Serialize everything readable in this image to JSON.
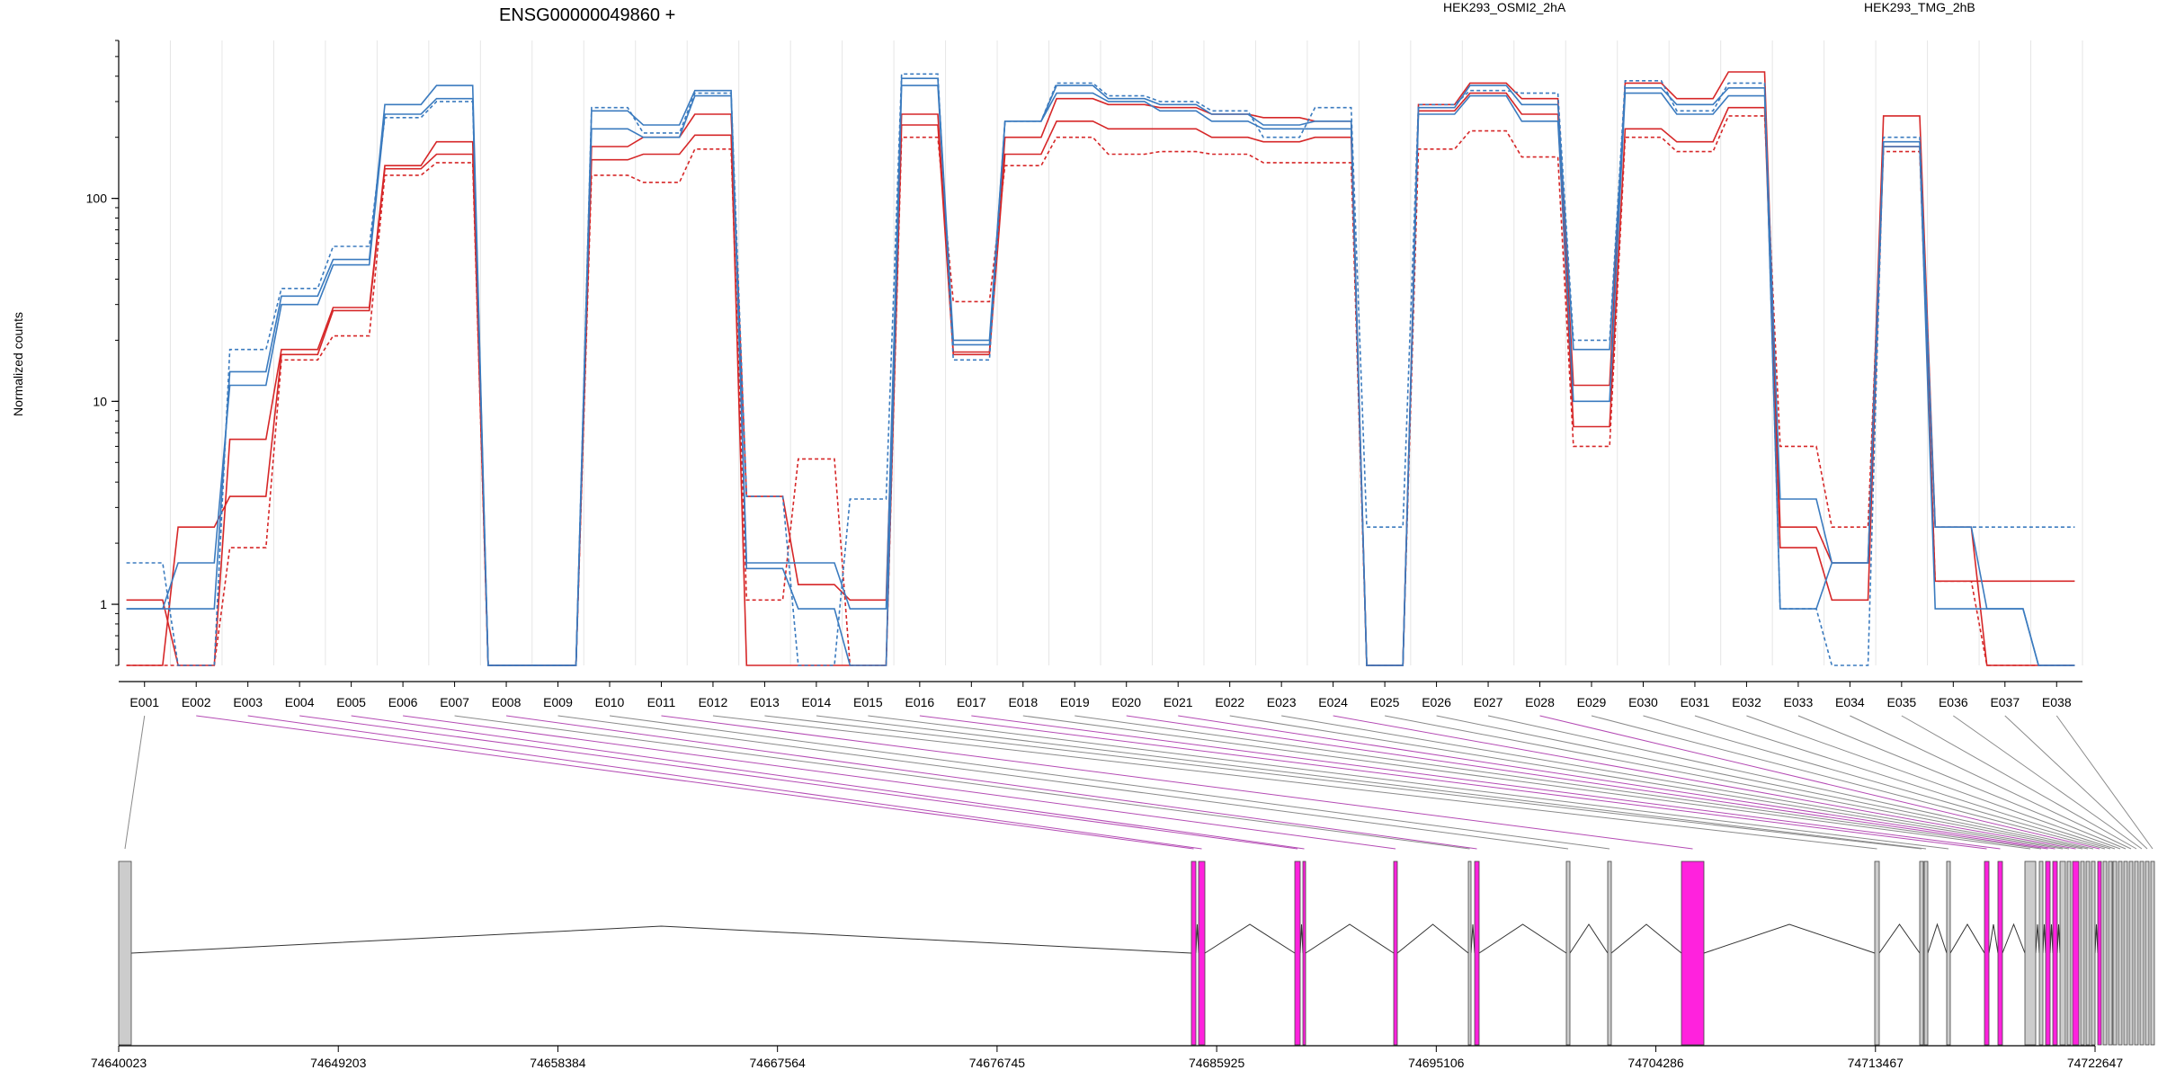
{
  "chart_data": {
    "type": "line",
    "title": "ENSG00000049860 +",
    "ylabel": "Normalized counts",
    "yscale": "log",
    "ylim": [
      0.5,
      600
    ],
    "yticks": [
      1,
      10,
      100
    ],
    "ytick_labels": [
      "1",
      "10",
      "100"
    ],
    "categories": [
      "E001",
      "E002",
      "E003",
      "E004",
      "E005",
      "E006",
      "E007",
      "E008",
      "E009",
      "E010",
      "E011",
      "E012",
      "E013",
      "E014",
      "E015",
      "E016",
      "E017",
      "E018",
      "E019",
      "E020",
      "E021",
      "E022",
      "E023",
      "E024",
      "E025",
      "E026",
      "E027",
      "E028",
      "E029",
      "E030",
      "E031",
      "E032",
      "E033",
      "E034",
      "E035",
      "E036",
      "E037",
      "E038"
    ],
    "legend": [
      {
        "label": "HEK293_OSMI2_2hA",
        "color": "#d62728"
      },
      {
        "label": "HEK293_TMG_2hB",
        "color": "#3b7bbf"
      }
    ],
    "series": [
      {
        "group": "HEK293_OSMI2_2hA",
        "color": "#d62728",
        "dash": "solid",
        "values": [
          1.05,
          0.5,
          6.5,
          18,
          29,
          145,
          190,
          0.5,
          0.5,
          180,
          200,
          260,
          3.4,
          1.25,
          1.05,
          260,
          17.5,
          200,
          310,
          290,
          280,
          260,
          250,
          240,
          0.5,
          290,
          370,
          310,
          12,
          370,
          310,
          420,
          2.4,
          1.6,
          255,
          2.4,
          0.5,
          0.5
        ]
      },
      {
        "group": "HEK293_OSMI2_2hA",
        "color": "#d62728",
        "dash": "solid",
        "values": [
          0.5,
          2.4,
          3.4,
          17,
          28,
          140,
          165,
          0.5,
          0.5,
          155,
          165,
          205,
          0.5,
          0.5,
          0.5,
          230,
          17,
          165,
          240,
          220,
          220,
          200,
          190,
          200,
          0.5,
          270,
          330,
          260,
          7.5,
          220,
          190,
          280,
          1.9,
          1.05,
          180,
          1.3,
          1.3,
          1.3
        ]
      },
      {
        "group": "HEK293_OSMI2_2hA",
        "color": "#d62728",
        "dash": "dashed",
        "values": [
          0.5,
          0.5,
          1.9,
          16,
          21,
          130,
          150,
          0.5,
          0.5,
          130,
          120,
          175,
          1.05,
          5.2,
          0.5,
          200,
          31,
          145,
          200,
          165,
          170,
          165,
          150,
          150,
          0.5,
          175,
          215,
          160,
          6.0,
          200,
          170,
          255,
          6.0,
          2.4,
          170,
          1.3,
          0.5,
          0.5
        ]
      },
      {
        "group": "HEK293_TMG_2hB",
        "color": "#3b7bbf",
        "dash": "solid",
        "values": [
          0.95,
          0.95,
          14,
          33,
          50,
          290,
          360,
          0.5,
          0.5,
          270,
          230,
          340,
          1.6,
          1.6,
          0.95,
          390,
          20,
          240,
          360,
          310,
          290,
          260,
          230,
          240,
          0.5,
          280,
          360,
          290,
          18,
          350,
          290,
          350,
          0.95,
          1.6,
          190,
          2.4,
          0.95,
          0.5
        ]
      },
      {
        "group": "HEK293_TMG_2hB",
        "color": "#3b7bbf",
        "dash": "solid",
        "values": [
          0.95,
          1.6,
          12,
          30,
          47,
          260,
          310,
          0.5,
          0.5,
          220,
          200,
          320,
          1.5,
          0.95,
          0.5,
          360,
          19,
          240,
          330,
          300,
          270,
          240,
          220,
          220,
          0.5,
          260,
          320,
          240,
          10,
          330,
          260,
          320,
          3.3,
          1.6,
          180,
          0.95,
          0.95,
          0.5
        ]
      },
      {
        "group": "HEK293_TMG_2hB",
        "color": "#3b7bbf",
        "dash": "dashed",
        "values": [
          1.6,
          0.5,
          18,
          36,
          58,
          250,
          300,
          0.5,
          0.5,
          280,
          210,
          330,
          3.4,
          0.5,
          3.3,
          410,
          16,
          240,
          370,
          320,
          300,
          270,
          200,
          280,
          2.4,
          290,
          340,
          330,
          20,
          380,
          270,
          370,
          0.95,
          0.5,
          200,
          2.4,
          2.4,
          2.4
        ]
      }
    ],
    "gene_model": {
      "coord_labels": [
        "74640023",
        "74649203",
        "74658384",
        "74667564",
        "74676745",
        "74685925",
        "74695106",
        "74704286",
        "74713467",
        "74722647"
      ]
    }
  }
}
